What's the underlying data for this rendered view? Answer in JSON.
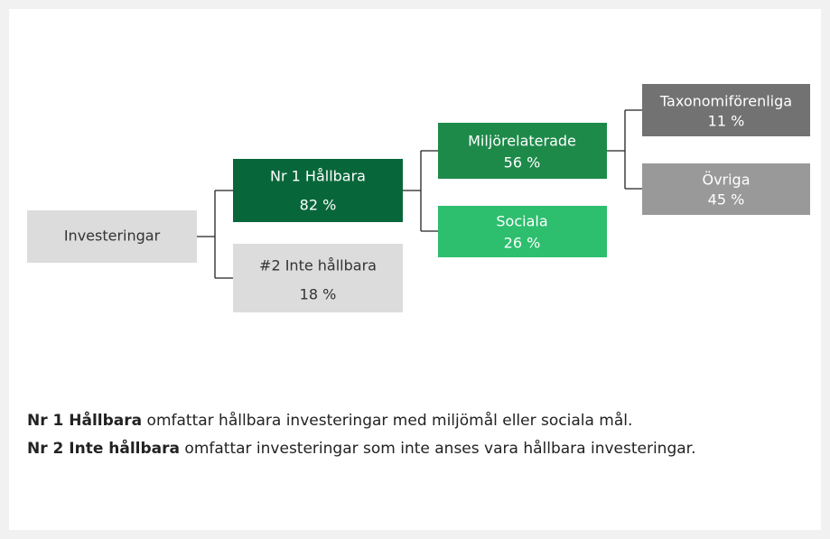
{
  "nodes": [
    {
      "label": "Investeringar"
    },
    {
      "label": "Nr 1 Hållbara",
      "value": "82 %"
    },
    {
      "label": "#2 Inte hållbara",
      "value": "18 %"
    },
    {
      "label": "Miljörelaterade",
      "value": "56 %"
    },
    {
      "label": "Sociala",
      "value": "26 %"
    },
    {
      "label": "Taxonomiförenliga",
      "value": "11 %"
    },
    {
      "label": "Övriga",
      "value": "45 %"
    }
  ],
  "notes": [
    {
      "term": "Nr 1 Hållbara",
      "text": "omfattar hållbara investeringar med miljömål eller sociala mål."
    },
    {
      "term": "Nr 2 Inte hållbara",
      "text": "omfattar investeringar som inte anses vara hållbara investeringar."
    }
  ]
}
